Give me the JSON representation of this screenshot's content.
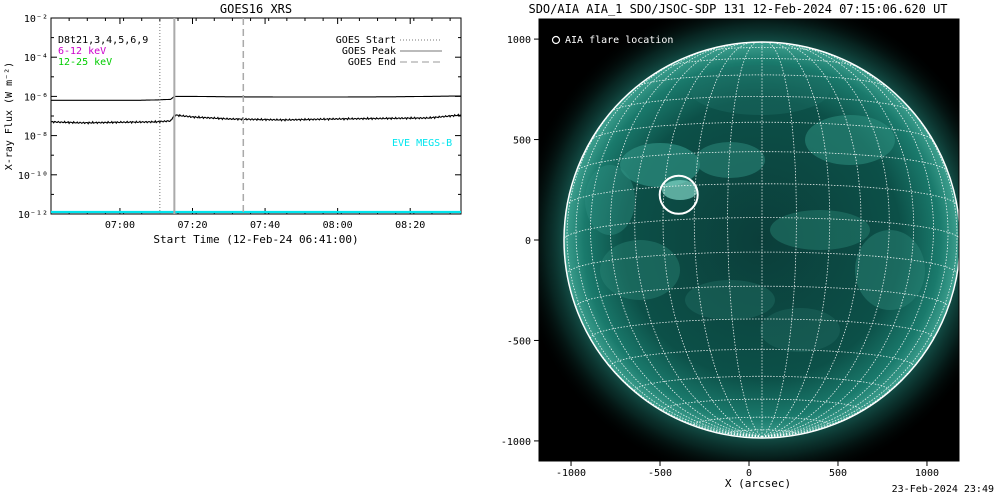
{
  "chart_data": [
    {
      "type": "line",
      "title": "GOES16 XRS",
      "xlabel": "Start Time (12-Feb-24 06:41:00)",
      "ylabel": "X-ray Flux (W m⁻²)",
      "ylim_log10": [
        -12,
        -2
      ],
      "y_ticks": [
        {
          "exp": -2,
          "label": "10⁻²"
        },
        {
          "exp": -4,
          "label": "10⁻⁴"
        },
        {
          "exp": -6,
          "label": "10⁻⁶"
        },
        {
          "exp": -8,
          "label": "10⁻⁸"
        },
        {
          "exp": -10,
          "label": "10⁻¹⁰"
        },
        {
          "exp": -12,
          "label": "10⁻¹²"
        }
      ],
      "xlim": [
        "06:41",
        "08:34"
      ],
      "x_ticks": [
        "07:00",
        "07:20",
        "07:40",
        "08:00",
        "08:20"
      ],
      "legend_left": [
        {
          "label": "D8t21,3,4,5,6,9",
          "color": "#000000"
        },
        {
          "label": "6-12 keV",
          "color": "#cc00cc"
        },
        {
          "label": "12-25 keV",
          "color": "#00cc00"
        }
      ],
      "legend_right": [
        {
          "label": "GOES Start",
          "style": "dotted"
        },
        {
          "label": "GOES Peak",
          "style": "solid"
        },
        {
          "label": "GOES End",
          "style": "dashed"
        }
      ],
      "event_lines": {
        "start": "07:11",
        "peak": "07:15",
        "end": "07:34"
      },
      "eve_label": "EVE MEGS-B",
      "eve_color": "#00e5ee",
      "series": [
        {
          "key": "long",
          "color": "#000000",
          "x": [
            "06:41",
            "06:55",
            "07:05",
            "07:10",
            "07:14",
            "07:15",
            "07:20",
            "07:30",
            "07:45",
            "08:00",
            "08:15",
            "08:25",
            "08:34"
          ],
          "log10": [
            -6.2,
            -6.2,
            -6.2,
            -6.18,
            -6.15,
            -6.0,
            -6.0,
            -6.02,
            -6.03,
            -6.03,
            -6.02,
            -6.0,
            -5.98
          ]
        },
        {
          "key": "short",
          "color": "#000000",
          "x": [
            "06:41",
            "06:50",
            "07:00",
            "07:10",
            "07:14",
            "07:15",
            "07:20",
            "07:30",
            "07:45",
            "08:00",
            "08:15",
            "08:25",
            "08:34"
          ],
          "log10": [
            -7.3,
            -7.35,
            -7.32,
            -7.3,
            -7.25,
            -6.95,
            -7.05,
            -7.15,
            -7.2,
            -7.15,
            -7.12,
            -7.1,
            -6.95
          ]
        },
        {
          "key": "eve",
          "color": "#00e5ee",
          "x": [
            "06:41",
            "08:34"
          ],
          "log10": [
            -11.9,
            -11.9
          ]
        }
      ]
    },
    {
      "type": "image",
      "title": "SDO/AIA AIA_1 SDO/JSOC-SDP 131 12-Feb-2024 07:15:06.620 UT",
      "xlabel": "X (arcsec)",
      "xlim": [
        -1180,
        1180
      ],
      "ylim": [
        -1100,
        1100
      ],
      "x_ticks": [
        -1000,
        -500,
        0,
        500,
        1000
      ],
      "y_ticks": [
        -1000,
        -500,
        0,
        500,
        1000
      ],
      "legend": "AIA flare location",
      "flare_location": {
        "x": -395,
        "y": 225
      },
      "timestamp": "23-Feb-2024 23:49"
    }
  ]
}
